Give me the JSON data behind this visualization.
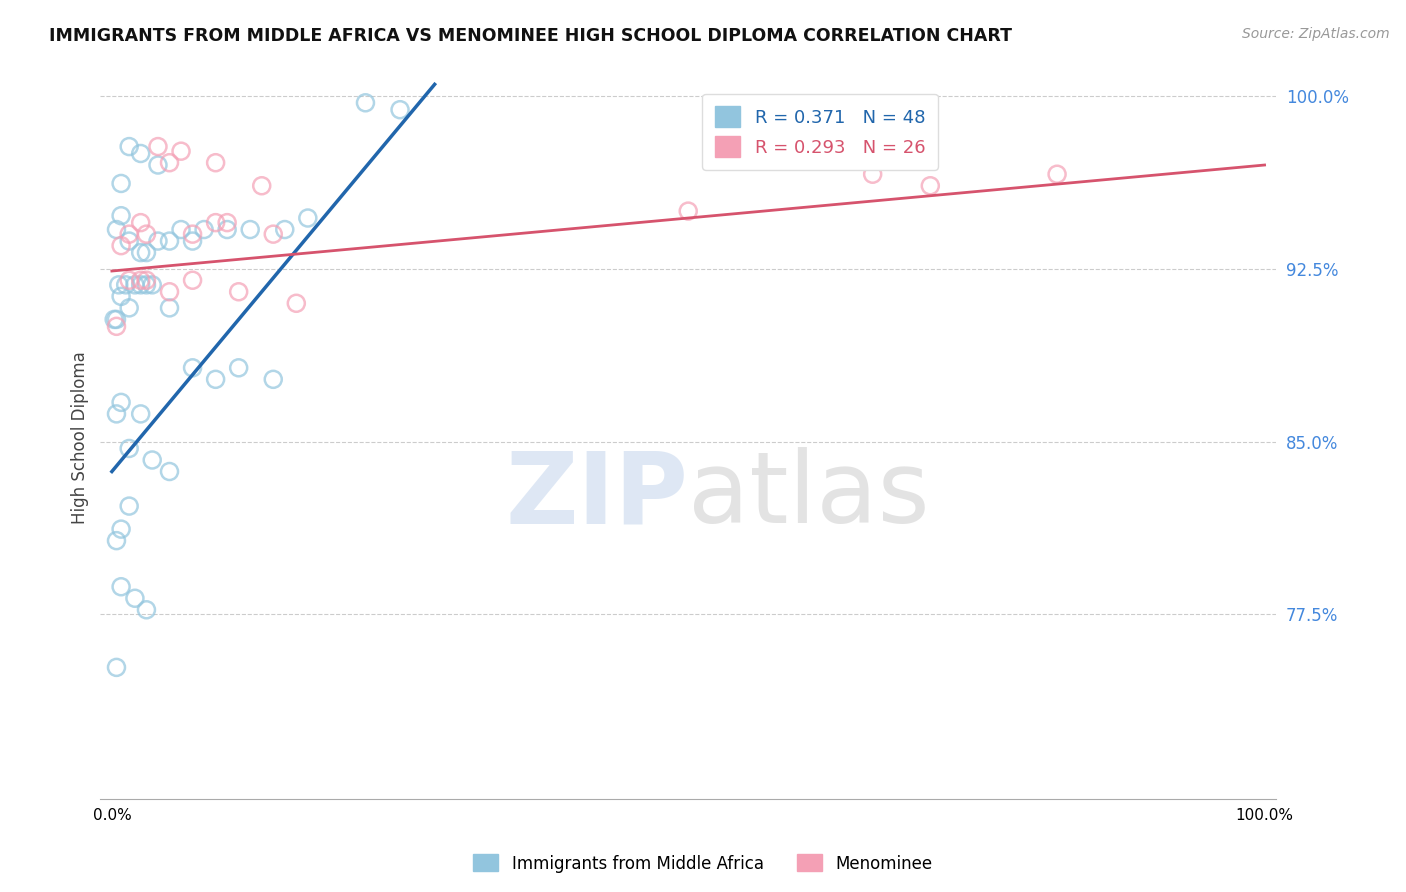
{
  "title": "IMMIGRANTS FROM MIDDLE AFRICA VS MENOMINEE HIGH SCHOOL DIPLOMA CORRELATION CHART",
  "source": "Source: ZipAtlas.com",
  "ylabel": "High School Diploma",
  "legend_r1": "R = 0.371",
  "legend_n1": "N = 48",
  "legend_r2": "R = 0.293",
  "legend_n2": "N = 26",
  "blue_color": "#92c5de",
  "pink_color": "#f4a0b5",
  "blue_line_color": "#2166ac",
  "pink_line_color": "#d6536d",
  "grid_color": "#cccccc",
  "xlim": [
    -1,
    101
  ],
  "ylim": [
    0.695,
    1.008
  ],
  "ytick_positions": [
    0.775,
    0.85,
    0.925,
    1.0
  ],
  "ytick_labels": [
    "77.5%",
    "85.0%",
    "92.5%",
    "100.0%"
  ],
  "xtick_positions": [
    0,
    100
  ],
  "xtick_labels": [
    "0.0%",
    "100.0%"
  ],
  "blue_scatter_x": [
    2.5,
    4,
    1.5,
    0.8,
    0.4,
    0.8,
    1.5,
    2.5,
    3,
    4,
    5,
    6,
    7,
    8,
    10,
    12,
    15,
    17,
    2.5,
    1.5,
    0.8,
    0.6,
    0.2,
    0.4,
    1.2,
    2,
    3,
    3.5,
    5,
    7,
    9,
    11,
    14,
    2.5,
    0.8,
    0.4,
    1.5,
    3.5,
    5,
    1.5,
    0.8,
    0.4,
    0.8,
    2,
    3,
    22,
    25,
    0.4
  ],
  "blue_scatter_y": [
    0.975,
    0.97,
    0.978,
    0.962,
    0.942,
    0.948,
    0.937,
    0.932,
    0.932,
    0.937,
    0.937,
    0.942,
    0.937,
    0.942,
    0.942,
    0.942,
    0.942,
    0.947,
    0.918,
    0.908,
    0.913,
    0.918,
    0.903,
    0.903,
    0.918,
    0.918,
    0.918,
    0.918,
    0.908,
    0.882,
    0.877,
    0.882,
    0.877,
    0.862,
    0.867,
    0.862,
    0.847,
    0.842,
    0.837,
    0.822,
    0.812,
    0.807,
    0.787,
    0.782,
    0.777,
    0.997,
    0.994,
    0.752
  ],
  "pink_scatter_x": [
    4,
    6,
    5,
    9,
    13,
    2.5,
    1.5,
    0.8,
    3,
    7,
    9,
    10,
    14,
    50,
    56,
    66,
    71,
    82,
    5,
    2.5,
    1.5,
    3,
    7,
    11,
    16,
    0.4
  ],
  "pink_scatter_y": [
    0.978,
    0.976,
    0.971,
    0.971,
    0.961,
    0.945,
    0.94,
    0.935,
    0.94,
    0.94,
    0.945,
    0.945,
    0.94,
    0.95,
    0.976,
    0.966,
    0.961,
    0.966,
    0.915,
    0.92,
    0.92,
    0.92,
    0.92,
    0.915,
    0.91,
    0.9
  ],
  "blue_line_x": [
    0,
    28
  ],
  "blue_line_y": [
    0.837,
    1.005
  ],
  "pink_line_x": [
    0,
    100
  ],
  "pink_line_y": [
    0.924,
    0.97
  ]
}
